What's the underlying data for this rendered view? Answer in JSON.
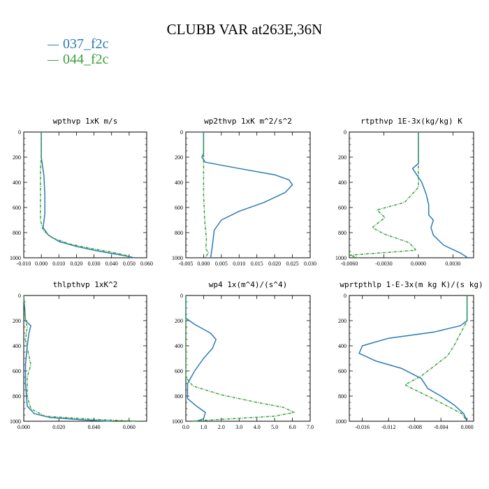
{
  "title": "CLUBB VAR at263E,36N",
  "legend": [
    {
      "label": "037_f2c",
      "color": "#2a7ab5"
    },
    {
      "label": "044_f2c",
      "color": "#3aa03a"
    }
  ],
  "chart_data": [
    {
      "type": "line",
      "title": "wpthvp  1xK m/s",
      "xlim": [
        -0.01,
        0.06
      ],
      "xticks": [
        "-0.010",
        "0.000",
        "0.010",
        "0.020",
        "0.030",
        "0.040",
        "0.050",
        "0.060"
      ],
      "ylim": [
        0,
        1000
      ],
      "yticks": [
        "0",
        "200",
        "400",
        "600",
        "800",
        "1000"
      ],
      "series": [
        {
          "name": "037_f2c",
          "color": "#2a7ab5",
          "points": [
            [
              0,
              0
            ],
            [
              0,
              200
            ],
            [
              0.0015,
              350
            ],
            [
              0.002,
              500
            ],
            [
              0.002,
              650
            ],
            [
              0.001,
              760
            ],
            [
              0.004,
              820
            ],
            [
              0.01,
              870
            ],
            [
              0.02,
              910
            ],
            [
              0.03,
              940
            ],
            [
              0.04,
              965
            ],
            [
              0.048,
              985
            ],
            [
              0.053,
              1000
            ]
          ]
        },
        {
          "name": "044_f2c",
          "color": "#3aa03a",
          "points": [
            [
              0,
              0
            ],
            [
              0,
              200
            ],
            [
              -0.0005,
              300
            ],
            [
              -0.0005,
              500
            ],
            [
              -0.0005,
              700
            ],
            [
              0.001,
              780
            ],
            [
              0.006,
              840
            ],
            [
              0.016,
              890
            ],
            [
              0.028,
              925
            ],
            [
              0.04,
              955
            ],
            [
              0.048,
              980
            ],
            [
              0.051,
              1000
            ]
          ]
        }
      ]
    },
    {
      "type": "line",
      "title": "wp2thvp  1xK m^2/s^2",
      "xlim": [
        -0.005,
        0.03
      ],
      "xticks": [
        "-0.005",
        "0.000",
        "0.005",
        "0.010",
        "0.015",
        "0.020",
        "0.025",
        "0.030"
      ],
      "ylim": [
        0,
        1000
      ],
      "yticks": [
        "0",
        "200",
        "400",
        "600",
        "800",
        "1000"
      ],
      "series": [
        {
          "name": "037_f2c",
          "color": "#2a7ab5",
          "points": [
            [
              0,
              0
            ],
            [
              0,
              170
            ],
            [
              -0.0005,
              200
            ],
            [
              0.0005,
              240
            ],
            [
              0.01,
              290
            ],
            [
              0.02,
              340
            ],
            [
              0.024,
              380
            ],
            [
              0.025,
              420
            ],
            [
              0.023,
              480
            ],
            [
              0.017,
              560
            ],
            [
              0.01,
              630
            ],
            [
              0.005,
              700
            ],
            [
              0.003,
              780
            ],
            [
              0.0025,
              900
            ],
            [
              0.002,
              1000
            ]
          ]
        },
        {
          "name": "044_f2c",
          "color": "#3aa03a",
          "points": [
            [
              0,
              0
            ],
            [
              0,
              500
            ],
            [
              0.0003,
              700
            ],
            [
              0.0008,
              850
            ],
            [
              0.0006,
              930
            ],
            [
              0.0014,
              960
            ],
            [
              0.0004,
              1000
            ]
          ]
        }
      ]
    },
    {
      "type": "line",
      "title": "rtpthvp  1E-3x(kg/kg) K",
      "xlim": [
        -0.006,
        0.0048
      ],
      "xticks": [
        "-0.0060",
        "-0.0030",
        "0.0000",
        "0.0030"
      ],
      "xtick_values": [
        -0.006,
        -0.003,
        0,
        0.003
      ],
      "ylim": [
        0,
        1000
      ],
      "yticks": [
        "0",
        "200",
        "400",
        "600",
        "800",
        "1000"
      ],
      "series": [
        {
          "name": "037_f2c",
          "color": "#2a7ab5",
          "points": [
            [
              0,
              0
            ],
            [
              0,
              250
            ],
            [
              -0.0005,
              290
            ],
            [
              0.0003,
              400
            ],
            [
              0.0007,
              500
            ],
            [
              0.0009,
              580
            ],
            [
              0.0009,
              660
            ],
            [
              0.0013,
              700
            ],
            [
              0.0011,
              760
            ],
            [
              0.0013,
              820
            ],
            [
              0.0022,
              900
            ],
            [
              0.0036,
              960
            ],
            [
              0.0043,
              1000
            ]
          ]
        },
        {
          "name": "044_f2c",
          "color": "#3aa03a",
          "points": [
            [
              0,
              0
            ],
            [
              0,
              440
            ],
            [
              -0.0012,
              560
            ],
            [
              -0.0036,
              620
            ],
            [
              -0.0029,
              680
            ],
            [
              -0.004,
              760
            ],
            [
              -0.003,
              810
            ],
            [
              -0.0008,
              880
            ],
            [
              -0.0002,
              940
            ],
            [
              -0.006,
              980
            ],
            [
              -0.0052,
              1000
            ]
          ]
        }
      ]
    },
    {
      "type": "line",
      "title": "thlpthvp  1xK^2",
      "xlim": [
        0,
        0.07
      ],
      "xticks": [
        "0.000",
        "0.020",
        "0.040",
        "0.060"
      ],
      "xtick_values": [
        0,
        0.02,
        0.04,
        0.06
      ],
      "ylim": [
        0,
        1000
      ],
      "yticks": [
        "0",
        "200",
        "400",
        "600",
        "800",
        "1000"
      ],
      "series": [
        {
          "name": "037_f2c",
          "color": "#2a7ab5",
          "points": [
            [
              0,
              0
            ],
            [
              0.001,
              200
            ],
            [
              0.004,
              240
            ],
            [
              0.003,
              300
            ],
            [
              0.002,
              400
            ],
            [
              0.001,
              550
            ],
            [
              0.001,
              700
            ],
            [
              0.002,
              880
            ],
            [
              0.006,
              940
            ],
            [
              0.015,
              970
            ],
            [
              0.035,
              990
            ],
            [
              0.05,
              1000
            ]
          ]
        },
        {
          "name": "044_f2c",
          "color": "#3aa03a",
          "points": [
            [
              0,
              0
            ],
            [
              0.001,
              200
            ],
            [
              0.002,
              250
            ],
            [
              0.001,
              350
            ],
            [
              0.004,
              550
            ],
            [
              0.002,
              650
            ],
            [
              0.002,
              800
            ],
            [
              0.004,
              900
            ],
            [
              0.012,
              960
            ],
            [
              0.04,
              985
            ],
            [
              0.065,
              1000
            ]
          ]
        }
      ]
    },
    {
      "type": "line",
      "title": "wp4  1x(m^4)/(s^4)",
      "xlim": [
        0,
        7
      ],
      "xticks": [
        "0.0",
        "1.0",
        "2.0",
        "3.0",
        "4.0",
        "5.0",
        "6.0",
        "7.0"
      ],
      "ylim": [
        0,
        1000
      ],
      "yticks": [
        "0",
        "200",
        "400",
        "600",
        "800",
        "1000"
      ],
      "series": [
        {
          "name": "037_f2c",
          "color": "#2a7ab5",
          "points": [
            [
              0,
              0
            ],
            [
              0,
              180
            ],
            [
              0.5,
              230
            ],
            [
              1.4,
              300
            ],
            [
              1.7,
              350
            ],
            [
              1.5,
              420
            ],
            [
              1.0,
              500
            ],
            [
              0.5,
              600
            ],
            [
              0.1,
              700
            ],
            [
              0.1,
              820
            ],
            [
              0.6,
              880
            ],
            [
              1.1,
              930
            ],
            [
              1.0,
              980
            ],
            [
              0.6,
              1000
            ]
          ]
        },
        {
          "name": "044_f2c",
          "color": "#3aa03a",
          "points": [
            [
              0,
              0
            ],
            [
              0,
              650
            ],
            [
              0.4,
              720
            ],
            [
              2.0,
              790
            ],
            [
              4.0,
              850
            ],
            [
              5.5,
              890
            ],
            [
              6.1,
              930
            ],
            [
              5.0,
              960
            ],
            [
              2.0,
              985
            ],
            [
              0.3,
              1000
            ]
          ]
        }
      ]
    },
    {
      "type": "line",
      "title": "wprtpthlp  1-E-3x(m kg K)/(s kg)",
      "xlim": [
        -0.018,
        0.001
      ],
      "xticks": [
        "-0.016",
        "-0.012",
        "-0.008",
        "-0.004",
        "0.000"
      ],
      "xtick_values": [
        -0.016,
        -0.012,
        -0.008,
        -0.004,
        0
      ],
      "ylim": [
        0,
        1000
      ],
      "yticks": [
        "0",
        "200",
        "400",
        "600",
        "800",
        "1000"
      ],
      "series": [
        {
          "name": "037_f2c",
          "color": "#2a7ab5",
          "points": [
            [
              0,
              0
            ],
            [
              0,
              200
            ],
            [
              -0.001,
              240
            ],
            [
              -0.005,
              290
            ],
            [
              -0.012,
              340
            ],
            [
              -0.016,
              400
            ],
            [
              -0.0165,
              460
            ],
            [
              -0.014,
              520
            ],
            [
              -0.01,
              580
            ],
            [
              -0.007,
              660
            ],
            [
              -0.006,
              740
            ],
            [
              -0.004,
              800
            ],
            [
              -0.002,
              870
            ],
            [
              -0.0005,
              940
            ],
            [
              0,
              1000
            ]
          ]
        },
        {
          "name": "044_f2c",
          "color": "#3aa03a",
          "points": [
            [
              0,
              0
            ],
            [
              0,
              200
            ],
            [
              -0.001,
              300
            ],
            [
              -0.002,
              400
            ],
            [
              -0.003,
              480
            ],
            [
              -0.005,
              560
            ],
            [
              -0.007,
              640
            ],
            [
              -0.0095,
              710
            ],
            [
              -0.008,
              750
            ],
            [
              -0.006,
              800
            ],
            [
              -0.003,
              880
            ],
            [
              -0.0008,
              940
            ],
            [
              0,
              1000
            ]
          ]
        }
      ]
    }
  ]
}
